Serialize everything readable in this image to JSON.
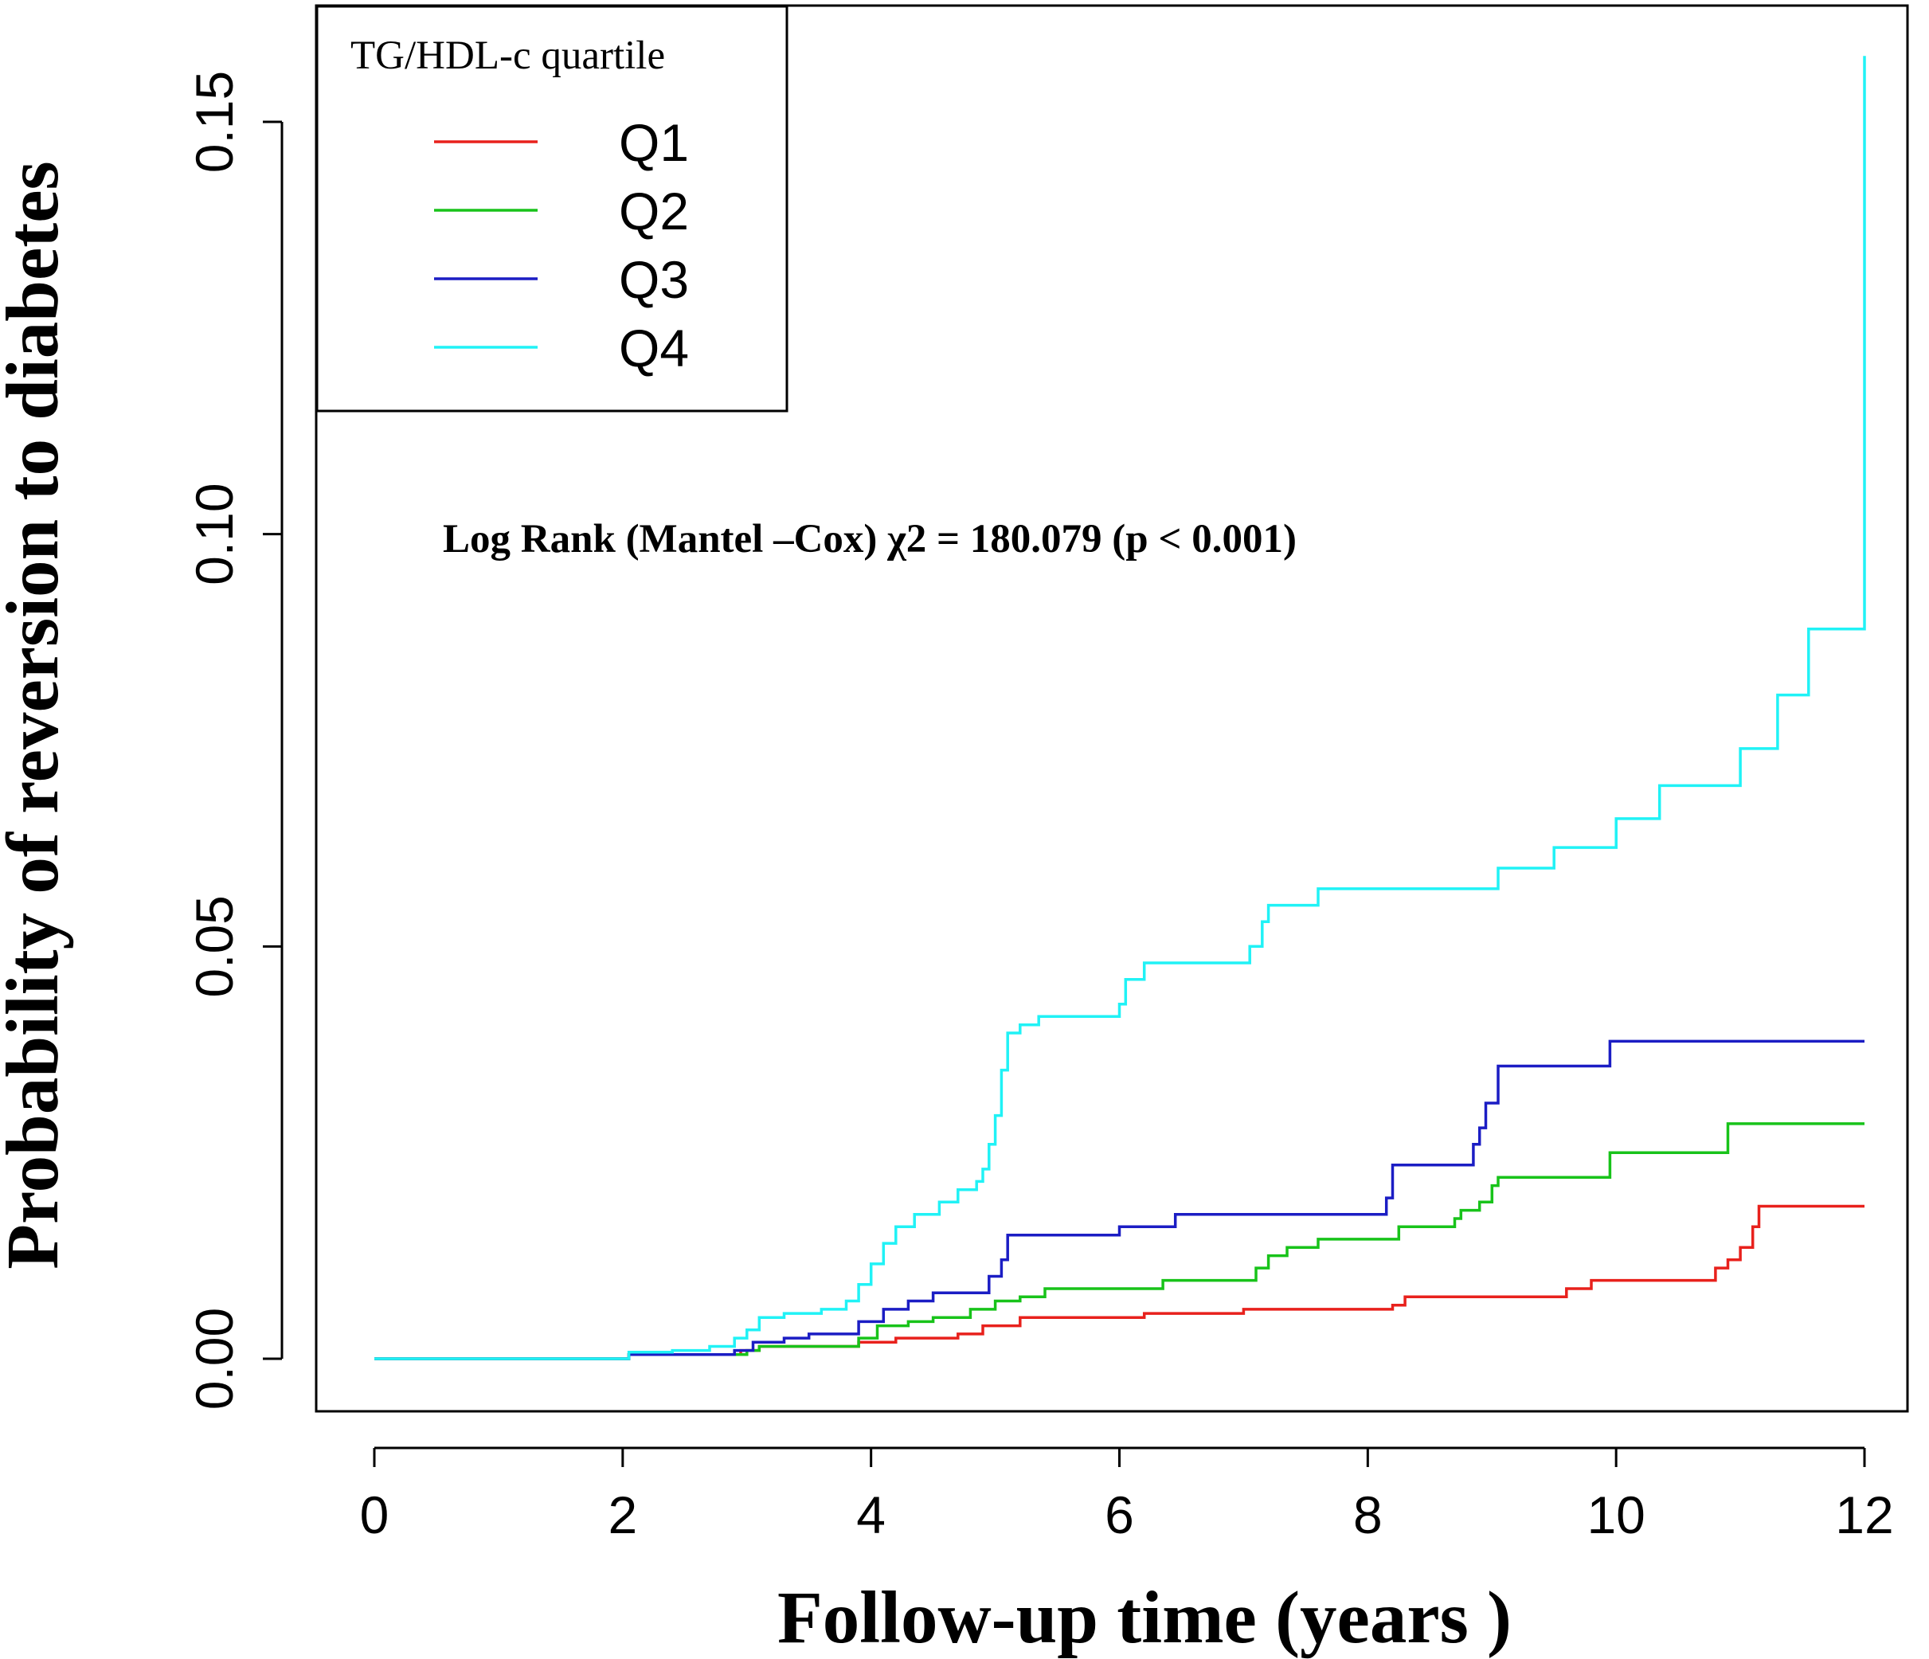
{
  "chart_data": {
    "type": "line",
    "subtype": "step",
    "title": "",
    "xlabel": "Follow-up time (years )",
    "ylabel": "Probability of reversion to diabetes",
    "xlim": [
      0,
      12
    ],
    "ylim": [
      0,
      0.15
    ],
    "xticks": [
      0,
      2,
      4,
      6,
      8,
      10,
      12
    ],
    "xtick_labels": [
      "0",
      "2",
      "4",
      "6",
      "8",
      "10",
      "12"
    ],
    "yticks": [
      0,
      0.05,
      0.1,
      0.15
    ],
    "ytick_labels": [
      "0.00",
      "0.05",
      "0.10",
      "0.15"
    ],
    "legend": {
      "title": "TG/HDL-c quartile",
      "position": "top-left"
    },
    "annotation": "Log Rank (Mantel –Cox) χ2 = 180.079   (p < 0.001)",
    "series": [
      {
        "name": "Q1",
        "color": "#e8211c",
        "points": [
          [
            0,
            0
          ],
          [
            2,
            0
          ],
          [
            2.05,
            0.0005
          ],
          [
            2.8,
            0.0005
          ],
          [
            2.95,
            0.001
          ],
          [
            3.1,
            0.0015
          ],
          [
            3.8,
            0.0015
          ],
          [
            3.9,
            0.002
          ],
          [
            4.2,
            0.0025
          ],
          [
            4.7,
            0.003
          ],
          [
            4.9,
            0.004
          ],
          [
            5.2,
            0.005
          ],
          [
            6.0,
            0.005
          ],
          [
            6.2,
            0.0055
          ],
          [
            7.0,
            0.006
          ],
          [
            8.2,
            0.0065
          ],
          [
            8.3,
            0.0075
          ],
          [
            9.0,
            0.0075
          ],
          [
            9.6,
            0.0085
          ],
          [
            9.8,
            0.0095
          ],
          [
            10.75,
            0.0095
          ],
          [
            10.8,
            0.011
          ],
          [
            10.9,
            0.012
          ],
          [
            11.0,
            0.0135
          ],
          [
            11.1,
            0.016
          ],
          [
            11.15,
            0.0185
          ],
          [
            12,
            0.0185
          ]
        ]
      },
      {
        "name": "Q2",
        "color": "#18c31a",
        "points": [
          [
            0,
            0
          ],
          [
            2,
            0
          ],
          [
            2.05,
            0.0005
          ],
          [
            2.9,
            0.0005
          ],
          [
            3.0,
            0.001
          ],
          [
            3.1,
            0.0015
          ],
          [
            3.8,
            0.0015
          ],
          [
            3.9,
            0.0025
          ],
          [
            4.05,
            0.004
          ],
          [
            4.3,
            0.0045
          ],
          [
            4.5,
            0.005
          ],
          [
            4.8,
            0.006
          ],
          [
            5.0,
            0.007
          ],
          [
            5.2,
            0.0075
          ],
          [
            5.4,
            0.0085
          ],
          [
            6.0,
            0.0085
          ],
          [
            6.35,
            0.0095
          ],
          [
            7.1,
            0.011
          ],
          [
            7.2,
            0.0125
          ],
          [
            7.35,
            0.0135
          ],
          [
            7.6,
            0.0145
          ],
          [
            8.2,
            0.0145
          ],
          [
            8.25,
            0.016
          ],
          [
            8.7,
            0.017
          ],
          [
            8.75,
            0.018
          ],
          [
            8.9,
            0.019
          ],
          [
            9.0,
            0.021
          ],
          [
            9.05,
            0.022
          ],
          [
            9.9,
            0.022
          ],
          [
            9.95,
            0.025
          ],
          [
            10.85,
            0.025
          ],
          [
            10.9,
            0.0285
          ],
          [
            12,
            0.0285
          ]
        ]
      },
      {
        "name": "Q3",
        "color": "#1b1dc4",
        "points": [
          [
            0,
            0
          ],
          [
            2,
            0
          ],
          [
            2.05,
            0.0005
          ],
          [
            2.9,
            0.001
          ],
          [
            3.05,
            0.002
          ],
          [
            3.3,
            0.0025
          ],
          [
            3.5,
            0.003
          ],
          [
            3.85,
            0.003
          ],
          [
            3.9,
            0.0045
          ],
          [
            4.1,
            0.006
          ],
          [
            4.3,
            0.007
          ],
          [
            4.5,
            0.008
          ],
          [
            4.85,
            0.008
          ],
          [
            4.95,
            0.01
          ],
          [
            5.05,
            0.012
          ],
          [
            5.1,
            0.015
          ],
          [
            5.9,
            0.015
          ],
          [
            6.0,
            0.016
          ],
          [
            6.45,
            0.0175
          ],
          [
            8.1,
            0.0175
          ],
          [
            8.15,
            0.0195
          ],
          [
            8.2,
            0.0235
          ],
          [
            8.8,
            0.0235
          ],
          [
            8.85,
            0.026
          ],
          [
            8.9,
            0.028
          ],
          [
            8.95,
            0.031
          ],
          [
            9.05,
            0.0355
          ],
          [
            9.9,
            0.0355
          ],
          [
            9.95,
            0.0385
          ],
          [
            12,
            0.0385
          ]
        ]
      },
      {
        "name": "Q4",
        "color": "#20f2f6",
        "points": [
          [
            0,
            0
          ],
          [
            2,
            0
          ],
          [
            2.05,
            0.0008
          ],
          [
            2.4,
            0.001
          ],
          [
            2.7,
            0.0015
          ],
          [
            2.9,
            0.0025
          ],
          [
            3.0,
            0.0035
          ],
          [
            3.1,
            0.005
          ],
          [
            3.3,
            0.0055
          ],
          [
            3.6,
            0.006
          ],
          [
            3.8,
            0.007
          ],
          [
            3.9,
            0.009
          ],
          [
            4.0,
            0.0115
          ],
          [
            4.1,
            0.014
          ],
          [
            4.2,
            0.016
          ],
          [
            4.35,
            0.0175
          ],
          [
            4.55,
            0.019
          ],
          [
            4.7,
            0.0205
          ],
          [
            4.85,
            0.0215
          ],
          [
            4.9,
            0.023
          ],
          [
            4.95,
            0.026
          ],
          [
            5.0,
            0.0295
          ],
          [
            5.05,
            0.035
          ],
          [
            5.1,
            0.0395
          ],
          [
            5.2,
            0.0405
          ],
          [
            5.35,
            0.0415
          ],
          [
            5.95,
            0.0415
          ],
          [
            6.0,
            0.043
          ],
          [
            6.05,
            0.046
          ],
          [
            6.2,
            0.048
          ],
          [
            7.0,
            0.048
          ],
          [
            7.05,
            0.05
          ],
          [
            7.15,
            0.053
          ],
          [
            7.2,
            0.055
          ],
          [
            7.6,
            0.057
          ],
          [
            9.0,
            0.057
          ],
          [
            9.05,
            0.0595
          ],
          [
            9.5,
            0.062
          ],
          [
            10.0,
            0.0655
          ],
          [
            10.35,
            0.0695
          ],
          [
            10.95,
            0.0695
          ],
          [
            11.0,
            0.074
          ],
          [
            11.3,
            0.0745
          ],
          [
            11.3,
            0.0805
          ],
          [
            11.55,
            0.0805
          ],
          [
            11.55,
            0.0885
          ],
          [
            11.98,
            0.0885
          ],
          [
            12,
            0.158
          ]
        ]
      }
    ]
  }
}
